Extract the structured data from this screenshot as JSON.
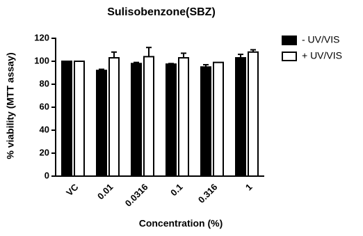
{
  "chart_data": {
    "type": "bar",
    "title": "Sulisobenzone(SBZ)",
    "x_label": "Concentration  (%)",
    "y_label": "% viability (MTT assay)",
    "categories": [
      "VC",
      "0.01",
      "0.0316",
      "0.1",
      "0.316",
      "1"
    ],
    "series": [
      {
        "name": "- UV/VIS",
        "color": "#000000",
        "values": [
          100,
          92,
          98,
          97.5,
          95,
          103
        ],
        "errors": [
          0,
          1,
          1,
          0.5,
          2,
          3
        ]
      },
      {
        "name": "+ UV/VIS",
        "color": "#ffffff",
        "values": [
          100,
          103,
          104,
          103,
          99,
          108
        ],
        "errors": [
          0,
          5,
          8,
          4,
          0,
          2
        ]
      }
    ],
    "ylim": [
      0,
      120
    ],
    "yticks": [
      0,
      20,
      40,
      60,
      80,
      100,
      120
    ],
    "legend": "right"
  }
}
